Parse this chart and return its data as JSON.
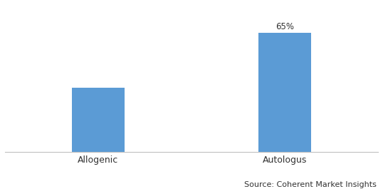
{
  "categories": [
    "Allogenic",
    "Autologus"
  ],
  "values": [
    35,
    65
  ],
  "bar_colors": [
    "#5b9bd5",
    "#5b9bd5"
  ],
  "bar_labels": [
    "",
    "65%"
  ],
  "source_text": "Source: Coherent Market Insights",
  "ylim": [
    0,
    80
  ],
  "xlim": [
    -0.5,
    1.5
  ],
  "x_positions": [
    0,
    1
  ],
  "bar_width": 0.28,
  "background_color": "#ffffff",
  "label_fontsize": 8.5,
  "tick_fontsize": 9,
  "source_fontsize": 8,
  "border_color": "#c0c0c0"
}
